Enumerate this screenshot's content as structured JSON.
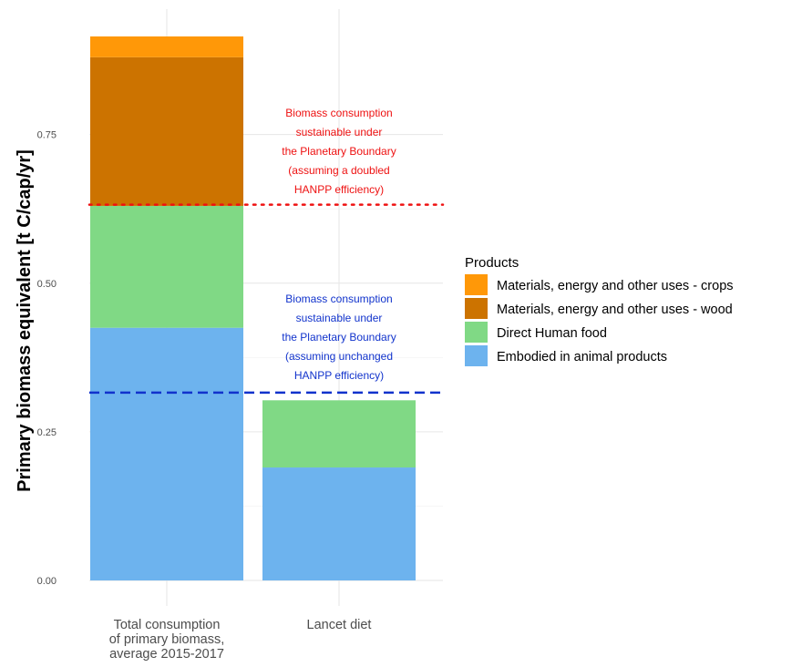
{
  "chart_data": {
    "type": "bar",
    "stacked": true,
    "categories": [
      [
        "Total consumption",
        "of primary biomass,",
        "average 2015-2017"
      ],
      [
        "Lancet diet"
      ]
    ],
    "series": [
      {
        "name": "Embodied in animal products",
        "values": [
          0.425,
          0.19
        ],
        "color": "#6DB3EE"
      },
      {
        "name": "Direct Human food",
        "values": [
          0.205,
          0.113
        ],
        "color": "#80D985"
      },
      {
        "name": "Materials, energy and other uses - wood",
        "values": [
          0.25,
          0
        ],
        "color": "#CC7300"
      },
      {
        "name": "Materials, energy and other uses - crops",
        "values": [
          0.035,
          0
        ],
        "color": "#FF9808"
      }
    ],
    "ylabel": "Primary biomass equivalent [t C/cap/yr]",
    "xlabel": "",
    "ylim": [
      0,
      0.915
    ],
    "yticks": [
      "0.00",
      "0.25",
      "0.50",
      "0.75"
    ],
    "grid": true,
    "legend": {
      "title": "Products",
      "position": "right",
      "order": [
        "Materials, energy and other uses - crops",
        "Materials, energy and other uses - wood",
        "Direct Human food",
        "Embodied in animal products"
      ]
    },
    "reference_lines": [
      {
        "y": 0.632,
        "color": "#EE1111",
        "style": "dotted",
        "label": [
          "Biomass consumption",
          "sustainable under",
          "the Planetary Boundary",
          "(assuming a doubled",
          "HANPP efficiency)"
        ]
      },
      {
        "y": 0.316,
        "color": "#1133CC",
        "style": "dashed",
        "label": [
          "Biomass consumption",
          "sustainable under",
          "the Planetary Boundary",
          "(assuming unchanged",
          "HANPP efficiency)"
        ]
      }
    ]
  }
}
